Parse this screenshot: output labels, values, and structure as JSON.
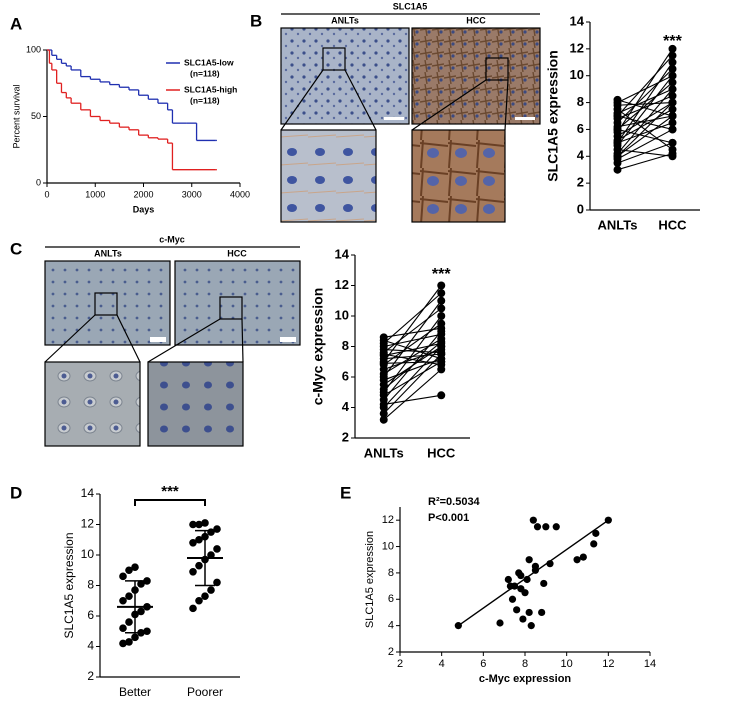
{
  "chart_data": [
    {
      "type": "survival",
      "panel": "A",
      "xlabel": "Days",
      "ylabel": "Percent survival",
      "xlim": [
        0,
        4000
      ],
      "xticks": [
        0,
        1000,
        2000,
        3000,
        4000
      ],
      "ylim": [
        0,
        100
      ],
      "yticks": [
        0,
        50,
        100
      ],
      "series": [
        {
          "name": "SLC1A5-low",
          "n_label": "(n=118)",
          "color": "#1f2fb0",
          "x": [
            0,
            100,
            200,
            300,
            400,
            500,
            700,
            900,
            1100,
            1300,
            1500,
            1700,
            1900,
            2100,
            2300,
            2500,
            2600,
            2900,
            3100,
            3500
          ],
          "values": [
            100,
            96,
            93,
            90,
            88,
            85,
            80,
            78,
            76,
            74,
            72,
            70,
            66,
            63,
            60,
            55,
            45,
            45,
            32,
            32
          ]
        },
        {
          "name": "SLC1A5-high",
          "n_label": "(n=118)",
          "color": "#e02020",
          "x": [
            0,
            50,
            100,
            200,
            300,
            400,
            500,
            700,
            900,
            1100,
            1300,
            1500,
            1700,
            1900,
            2100,
            2300,
            2500,
            2600,
            3500
          ],
          "values": [
            100,
            90,
            85,
            75,
            68,
            64,
            60,
            55,
            50,
            47,
            45,
            42,
            40,
            36,
            34,
            33,
            30,
            10,
            10
          ]
        }
      ]
    },
    {
      "type": "paired",
      "panel": "B",
      "image_title": "SLC1A5",
      "image_labels": [
        "ANLTs",
        "HCC"
      ],
      "ylabel": "SLC1A5 expression",
      "annotation": "***",
      "categories": [
        "ANLTs",
        "HCC"
      ],
      "ylim": [
        0,
        14
      ],
      "yticks": [
        0,
        2,
        4,
        6,
        8,
        10,
        12,
        14
      ],
      "values": [
        [
          3,
          3.5,
          3.8,
          4,
          4,
          4.2,
          4.5,
          4.8,
          5,
          5,
          5.2,
          5.5,
          5.8,
          6,
          6,
          6.2,
          6.5,
          6.8,
          7,
          7,
          7.2,
          7.5,
          7.8,
          8,
          8.2
        ],
        [
          4.2,
          5,
          6,
          7,
          8,
          9,
          4,
          10,
          6.5,
          11,
          7.5,
          8,
          12,
          5,
          9.5,
          7,
          10.5,
          8.5,
          6,
          11.5,
          9,
          4.5,
          8,
          10,
          7
        ]
      ]
    },
    {
      "type": "paired",
      "panel": "C",
      "image_title": "c-Myc",
      "image_labels": [
        "ANLTs",
        "HCC"
      ],
      "ylabel": "c-Myc expression",
      "annotation": "***",
      "categories": [
        "ANLTs",
        "HCC"
      ],
      "ylim": [
        2,
        14
      ],
      "yticks": [
        2,
        4,
        6,
        8,
        10,
        12,
        14
      ],
      "values": [
        [
          3.2,
          3.6,
          4,
          4.2,
          4.5,
          4.8,
          5,
          5.5,
          5.8,
          6,
          6.2,
          6.5,
          6.8,
          7,
          7.2,
          7.4,
          7.6,
          7.8,
          8,
          8.2,
          8.4,
          8.6,
          7.5,
          6.9,
          5.2
        ],
        [
          6.5,
          7.5,
          8,
          4.8,
          9,
          7,
          10,
          8,
          7.2,
          11,
          8.5,
          7.8,
          9.5,
          12,
          7.5,
          8.2,
          10.5,
          7.6,
          8.8,
          11.5,
          7.2,
          9.2,
          6.8,
          7,
          8.3
        ]
      ]
    },
    {
      "type": "dot",
      "panel": "D",
      "ylabel": "SLC1A5 expression",
      "annotation": "***",
      "categories": [
        "Better",
        "Poorer"
      ],
      "ylim": [
        2,
        14
      ],
      "yticks": [
        2,
        4,
        6,
        8,
        10,
        12,
        14
      ],
      "values": [
        [
          4.2,
          4.3,
          4.6,
          4.9,
          5.0,
          5.2,
          5.6,
          6.1,
          6.3,
          6.6,
          7.0,
          7.3,
          7.7,
          8.1,
          8.3,
          8.6,
          9.0,
          9.2
        ],
        [
          6.5,
          7,
          7.3,
          7.7,
          8.2,
          8.9,
          9.3,
          9.7,
          10,
          10.4,
          10.8,
          11,
          11.2,
          11.5,
          11.7,
          12,
          12,
          12.1
        ]
      ],
      "means": [
        6.6,
        9.8
      ],
      "sds": [
        1.7,
        1.8
      ]
    },
    {
      "type": "scatter",
      "panel": "E",
      "xlabel": "c-Myc expression",
      "ylabel": "SLC1A5 expression",
      "r2_label": "R²=0.5034",
      "p_label": "P<0.001",
      "xlim": [
        2,
        14
      ],
      "xticks": [
        2,
        4,
        6,
        8,
        10,
        12,
        14
      ],
      "ylim": [
        2,
        13
      ],
      "yticks": [
        2,
        4,
        6,
        8,
        10,
        12
      ],
      "x": [
        4.8,
        6.8,
        7.2,
        7.4,
        7.5,
        7.6,
        7.7,
        7.8,
        7.9,
        8.0,
        8.1,
        8.2,
        8.3,
        8.4,
        8.5,
        8.6,
        8.8,
        9.0,
        9.2,
        9.5,
        10.5,
        10.8,
        11.3,
        11.4,
        12,
        8.5,
        7.8,
        8.9,
        7.3,
        8.2
      ],
      "values": [
        4,
        4.2,
        7.5,
        6,
        7,
        5.2,
        8,
        7.8,
        4.5,
        6.5,
        7.5,
        9,
        4,
        12,
        8.2,
        11.5,
        5,
        11.5,
        8.7,
        11.5,
        9,
        9.2,
        10.2,
        11,
        12,
        8.5,
        6.8,
        7.2,
        7,
        5
      ],
      "fit_line": {
        "x": [
          4.8,
          12
        ],
        "y": [
          4,
          12
        ]
      }
    }
  ]
}
